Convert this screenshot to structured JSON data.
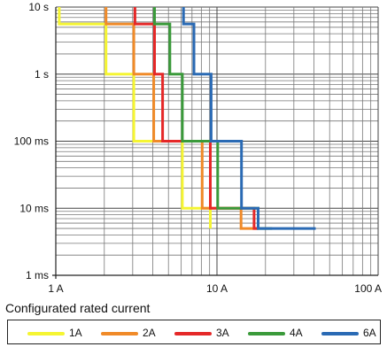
{
  "chart_data": {
    "type": "line",
    "x_scale": "log",
    "y_scale": "log",
    "x_unit": "A",
    "y_unit": "s",
    "xlim": [
      1,
      100
    ],
    "ylim": [
      0.001,
      10
    ],
    "grid": true,
    "legend_position": "bottom",
    "x_tick_labels": [
      "1 A",
      "10 A",
      "100 A"
    ],
    "y_tick_labels": [
      "10 s",
      "1 s",
      "100 ms",
      "10 ms",
      "1 ms"
    ],
    "legend_title": "Configurated rated current",
    "series": [
      {
        "name": "1A",
        "color": "#f5f532",
        "points": [
          [
            1.05,
            10
          ],
          [
            1.05,
            5.6
          ],
          [
            2.05,
            5.6
          ],
          [
            2.05,
            1
          ],
          [
            3.05,
            1
          ],
          [
            3.05,
            0.1
          ],
          [
            6.1,
            0.1
          ],
          [
            6.1,
            0.01
          ],
          [
            9.1,
            0.01
          ],
          [
            9.1,
            0.005
          ]
        ]
      },
      {
        "name": "2A",
        "color": "#f08a28",
        "points": [
          [
            2.05,
            10
          ],
          [
            2.05,
            5.6
          ],
          [
            3.05,
            5.6
          ],
          [
            3.05,
            1
          ],
          [
            4.05,
            1
          ],
          [
            4.05,
            0.1
          ],
          [
            8.1,
            0.1
          ],
          [
            8.1,
            0.01
          ],
          [
            14.1,
            0.01
          ],
          [
            14.1,
            0.005
          ],
          [
            18,
            0.005
          ]
        ]
      },
      {
        "name": "3A",
        "color": "#e52828",
        "points": [
          [
            3.1,
            10
          ],
          [
            3.1,
            5.6
          ],
          [
            4.1,
            5.6
          ],
          [
            4.1,
            1
          ],
          [
            4.6,
            1
          ],
          [
            4.6,
            0.1
          ],
          [
            9.1,
            0.1
          ],
          [
            9.1,
            0.01
          ],
          [
            17,
            0.01
          ],
          [
            17,
            0.005
          ],
          [
            18,
            0.005
          ]
        ]
      },
      {
        "name": "4A",
        "color": "#3a9a3a",
        "points": [
          [
            4.1,
            10
          ],
          [
            4.1,
            5.6
          ],
          [
            5.1,
            5.6
          ],
          [
            5.1,
            1
          ],
          [
            6.1,
            1
          ],
          [
            6.1,
            0.1
          ],
          [
            10.1,
            0.1
          ],
          [
            10.1,
            0.01
          ],
          [
            18,
            0.01
          ],
          [
            18,
            0.005
          ],
          [
            22,
            0.005
          ]
        ]
      },
      {
        "name": "6A",
        "color": "#2a6ab4",
        "points": [
          [
            6.2,
            10
          ],
          [
            6.2,
            5.6
          ],
          [
            7.2,
            5.6
          ],
          [
            7.2,
            1
          ],
          [
            9.2,
            1
          ],
          [
            9.2,
            0.1
          ],
          [
            14.2,
            0.1
          ],
          [
            14.2,
            0.01
          ],
          [
            18,
            0.01
          ],
          [
            18,
            0.005
          ],
          [
            41,
            0.005
          ]
        ]
      }
    ]
  }
}
